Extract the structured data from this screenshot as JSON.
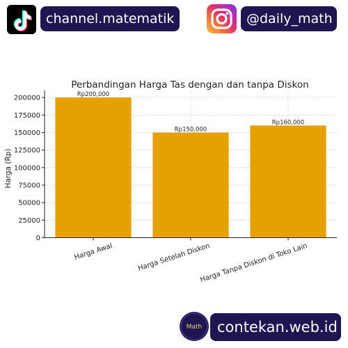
{
  "branding": {
    "tiktok_handle": "channel.matematik",
    "instagram_handle": "@daily_math",
    "website": "contekan.web.id",
    "math_logo_text": "Math",
    "colors": {
      "badge_bg": "#1e1650",
      "badge_text": "#ffffff",
      "bar": "#e6a000"
    },
    "icons": [
      "tiktok-icon",
      "instagram-icon",
      "math-logo-icon"
    ]
  },
  "chart_data": {
    "type": "bar",
    "title": "Perbandingan Harga Tas dengan dan tanpa Diskon",
    "xlabel": "",
    "ylabel": "Harga (Rp)",
    "categories": [
      "Harga Awal",
      "Harga Setelah Diskon",
      "Harga Tanpa Diskon di Toko Lain"
    ],
    "values": [
      200000,
      150000,
      160000
    ],
    "data_labels": [
      "Rp200,000",
      "Rp150,000",
      "Rp160,000"
    ],
    "ylim": [
      0,
      210000
    ],
    "yticks": [
      0,
      25000,
      50000,
      75000,
      100000,
      125000,
      150000,
      175000,
      200000
    ],
    "grid": true,
    "bar_color": "#e6a000"
  }
}
